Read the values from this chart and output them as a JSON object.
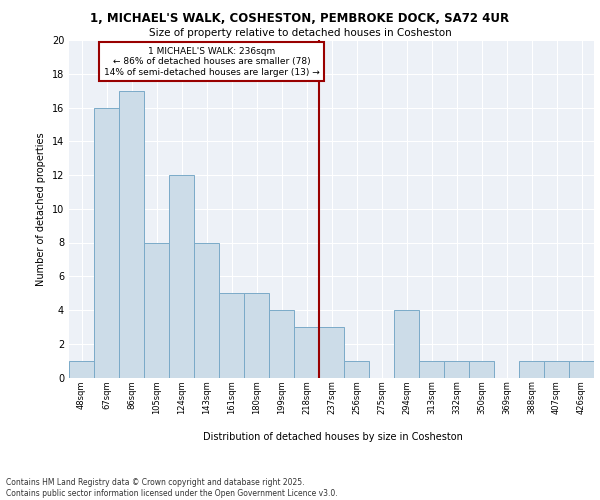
{
  "title_line1": "1, MICHAEL'S WALK, COSHESTON, PEMBROKE DOCK, SA72 4UR",
  "title_line2": "Size of property relative to detached houses in Cosheston",
  "xlabel": "Distribution of detached houses by size in Cosheston",
  "ylabel": "Number of detached properties",
  "categories": [
    "48sqm",
    "67sqm",
    "86sqm",
    "105sqm",
    "124sqm",
    "143sqm",
    "161sqm",
    "180sqm",
    "199sqm",
    "218sqm",
    "237sqm",
    "256sqm",
    "275sqm",
    "294sqm",
    "313sqm",
    "332sqm",
    "350sqm",
    "369sqm",
    "388sqm",
    "407sqm",
    "426sqm"
  ],
  "values": [
    1,
    16,
    17,
    8,
    12,
    8,
    5,
    5,
    4,
    3,
    3,
    1,
    0,
    4,
    1,
    1,
    1,
    0,
    1,
    1,
    1
  ],
  "bar_color": "#ccdce8",
  "bar_edge_color": "#7aaac8",
  "vline_x_idx": 10,
  "vline_color": "#990000",
  "annotation_text": "1 MICHAEL'S WALK: 236sqm\n← 86% of detached houses are smaller (78)\n14% of semi-detached houses are larger (13) →",
  "annotation_box_color": "#990000",
  "ylim": [
    0,
    20
  ],
  "yticks": [
    0,
    2,
    4,
    6,
    8,
    10,
    12,
    14,
    16,
    18,
    20
  ],
  "footer_line1": "Contains HM Land Registry data © Crown copyright and database right 2025.",
  "footer_line2": "Contains public sector information licensed under the Open Government Licence v3.0.",
  "bg_color": "#edf1f7",
  "grid_color": "#ffffff",
  "bar_width": 1.0
}
